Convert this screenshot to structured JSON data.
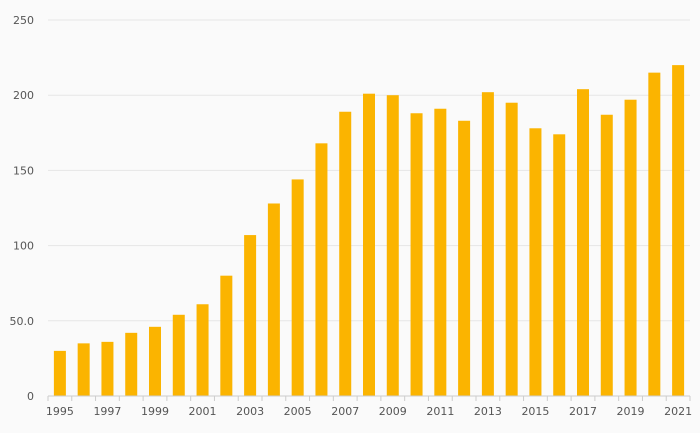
{
  "chart_data": {
    "type": "bar",
    "categories": [
      "1995",
      "1996",
      "1997",
      "1998",
      "1999",
      "2000",
      "2001",
      "2002",
      "2003",
      "2004",
      "2005",
      "2006",
      "2007",
      "2008",
      "2009",
      "2010",
      "2011",
      "2012",
      "2013",
      "2014",
      "2015",
      "2016",
      "2017",
      "2018",
      "2019",
      "2020",
      "2021"
    ],
    "x_tick_labels": [
      "1995",
      "1997",
      "1999",
      "2001",
      "2003",
      "2005",
      "2007",
      "2009",
      "2011",
      "2013",
      "2015",
      "2017",
      "2019",
      "2021"
    ],
    "values": [
      30,
      35,
      36,
      42,
      46,
      54,
      61,
      80,
      107,
      128,
      144,
      168,
      189,
      201,
      200,
      188,
      191,
      183,
      202,
      195,
      178,
      174,
      204,
      187,
      197,
      215,
      220
    ],
    "y_ticks": [
      0,
      50.0,
      100,
      150,
      200,
      250
    ],
    "y_tick_labels": [
      "0",
      "50.0",
      "100",
      "150",
      "200",
      "250"
    ],
    "ylim": [
      0,
      250
    ],
    "grid": true,
    "bar_color": "#FBB400",
    "title": "",
    "xlabel": "",
    "ylabel": ""
  }
}
